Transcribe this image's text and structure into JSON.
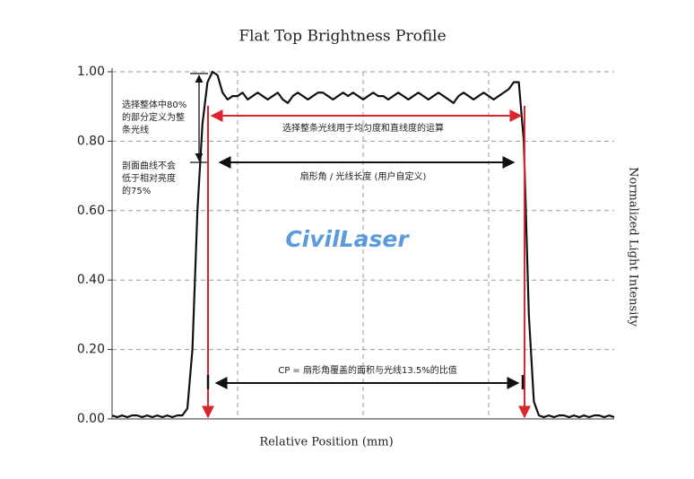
{
  "chart_data": {
    "type": "line",
    "title": "Flat Top Brightness Profile",
    "xlabel": "Relative Position (mm)",
    "ylabel": "Normalized Light Intensity",
    "watermark": "CivilLaser",
    "color": "#111111",
    "values": [
      0.01,
      0.005,
      0.01,
      0.005,
      0.01,
      0.01,
      0.005,
      0.01,
      0.005,
      0.01,
      0.005,
      0.01,
      0.005,
      0.01,
      0.01,
      0.03,
      0.2,
      0.6,
      0.85,
      0.97,
      1.0,
      0.99,
      0.94,
      0.92,
      0.93,
      0.93,
      0.94,
      0.92,
      0.93,
      0.94,
      0.93,
      0.92,
      0.93,
      0.94,
      0.92,
      0.91,
      0.93,
      0.94,
      0.93,
      0.92,
      0.93,
      0.94,
      0.94,
      0.93,
      0.92,
      0.93,
      0.94,
      0.93,
      0.94,
      0.93,
      0.92,
      0.93,
      0.94,
      0.93,
      0.93,
      0.92,
      0.93,
      0.94,
      0.93,
      0.92,
      0.93,
      0.94,
      0.93,
      0.92,
      0.93,
      0.94,
      0.93,
      0.92,
      0.91,
      0.93,
      0.94,
      0.93,
      0.92,
      0.93,
      0.94,
      0.93,
      0.92,
      0.93,
      0.94,
      0.95,
      0.97,
      0.97,
      0.8,
      0.3,
      0.05,
      0.01,
      0.005,
      0.01,
      0.005,
      0.01,
      0.01,
      0.005,
      0.01,
      0.005,
      0.01,
      0.005,
      0.01,
      0.01,
      0.005,
      0.01,
      0.005
    ],
    "ylim": [
      0,
      1
    ],
    "yticks": [
      {
        "value": 0,
        "label": "0.00"
      },
      {
        "value": 0.2,
        "label": "0.20"
      },
      {
        "value": 0.4,
        "label": "0.40"
      },
      {
        "value": 0.6,
        "label": "0.60"
      },
      {
        "value": 0.8,
        "label": "0.80"
      },
      {
        "value": 1,
        "label": "1.00"
      }
    ],
    "grid": true,
    "annotations": {
      "range_80": [
        "选择整体中80%",
        "的部分定义为整",
        "条光线"
      ],
      "min_75": [
        "剖面曲线不会",
        "低于相对亮度",
        "的75%"
      ],
      "uniformity": "选择整条光线用于均匀度和直线度的运算",
      "fan_angle": "扇形角 / 光线长度 (用户自定义)",
      "cp": "CP = 扇形角覆盖的面积与光线13.5%的比值"
    }
  }
}
